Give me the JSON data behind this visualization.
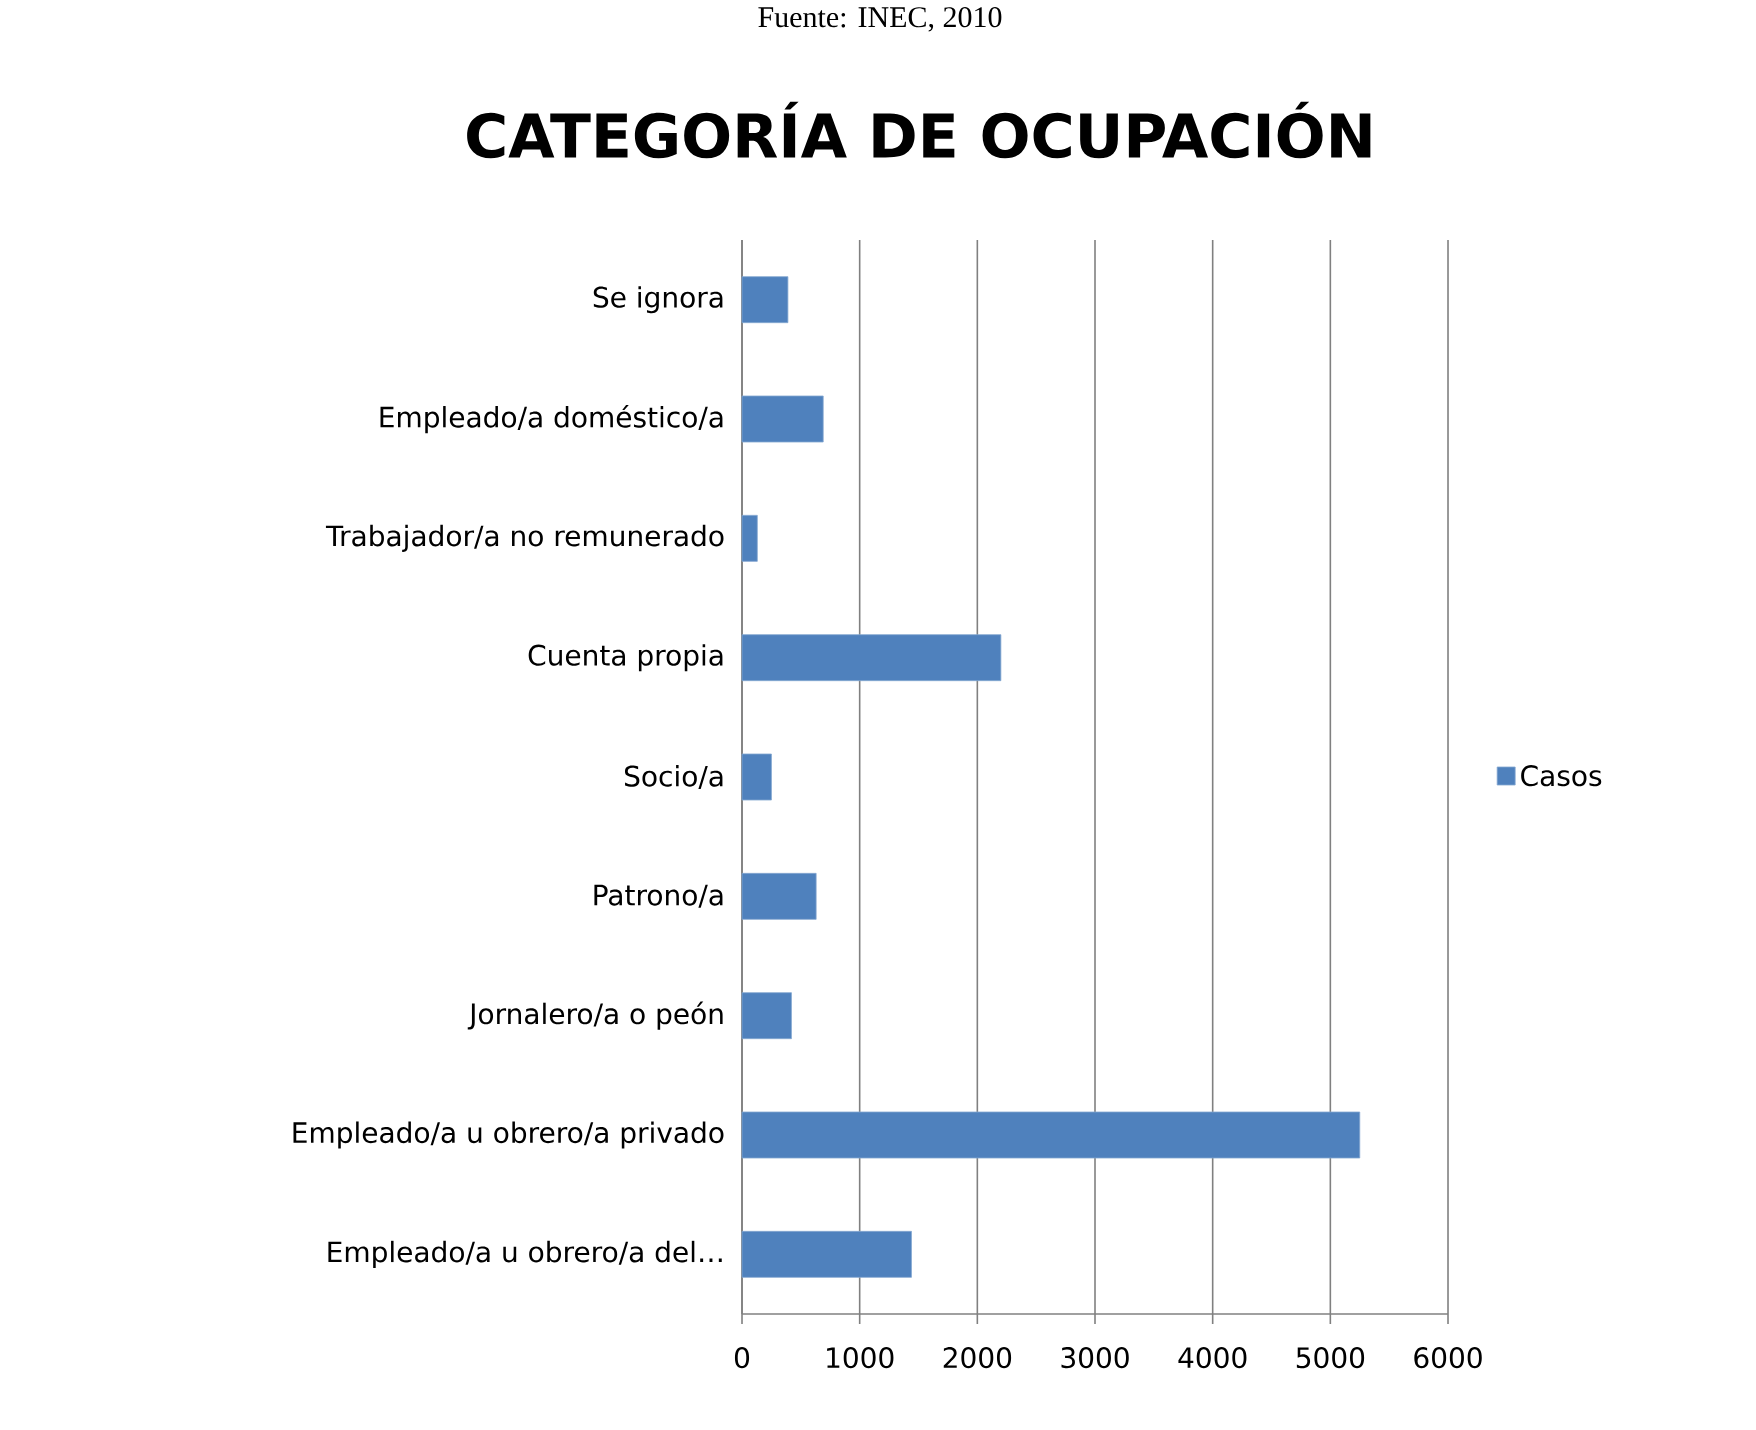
{
  "chart_data": {
    "type": "bar",
    "orientation": "horizontal",
    "title": "CATEGORÍA DE OCUPACIÓN",
    "annotations": [
      "Fuente: INEC, 2010"
    ],
    "categories": [
      "Se ignora",
      "Empleado/a doméstico/a",
      "Trabajador/a no remunerado",
      "Cuenta propia",
      "Socio/a",
      "Patrono/a",
      "Jornalero/a o peón",
      "Empleado/a u obrero/a privado",
      "Empleado/a u obrero/a del…"
    ],
    "series": [
      {
        "name": "Casos",
        "color": "#4f81bd",
        "values": [
          390,
          690,
          130,
          2200,
          250,
          630,
          420,
          5250,
          1440
        ]
      }
    ],
    "xlim": [
      0,
      6000
    ],
    "xticks": [
      0,
      1000,
      2000,
      3000,
      4000,
      5000,
      6000
    ],
    "grid": "x",
    "legend": "right"
  }
}
